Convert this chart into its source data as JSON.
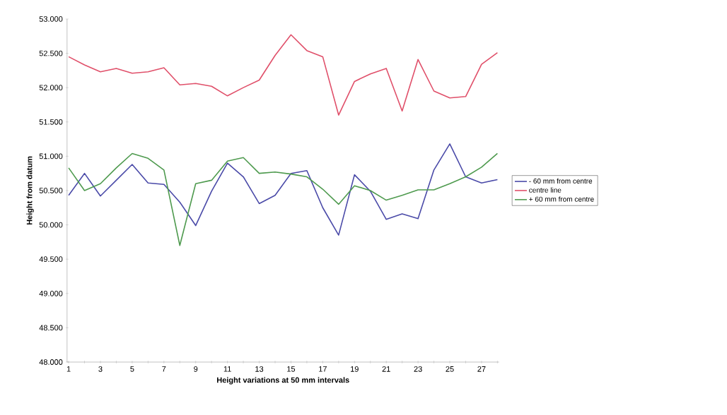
{
  "chart_data": {
    "type": "line",
    "xlabel": "Height variations at 50 mm intervals",
    "ylabel": "Height from datum",
    "categories": [
      "1",
      null,
      "3",
      null,
      "5",
      null,
      "7",
      null,
      "9",
      null,
      "11",
      null,
      "13",
      null,
      "15",
      null,
      "17",
      null,
      "19",
      null,
      "21",
      null,
      "23",
      null,
      "25",
      null,
      "27",
      null
    ],
    "series": [
      {
        "name": "- 60 mm from centre",
        "color": "#4a4aa8",
        "values": [
          50.43,
          50.75,
          50.42,
          50.65,
          50.88,
          50.61,
          50.59,
          50.33,
          49.99,
          50.49,
          50.9,
          50.7,
          50.31,
          50.43,
          50.75,
          50.79,
          50.25,
          49.85,
          50.73,
          50.49,
          50.08,
          50.16,
          50.09,
          50.8,
          51.18,
          50.7,
          50.61,
          50.66
        ]
      },
      {
        "name": "centre line",
        "color": "#e0506a",
        "values": [
          52.45,
          52.33,
          52.23,
          52.28,
          52.21,
          52.23,
          52.29,
          52.04,
          52.06,
          52.02,
          51.88,
          52.0,
          52.11,
          52.47,
          52.77,
          52.54,
          52.45,
          51.6,
          52.09,
          52.2,
          52.28,
          51.66,
          52.41,
          51.95,
          51.85,
          51.87,
          52.34,
          52.51
        ]
      },
      {
        "name": "+ 60 mm from centre",
        "color": "#4e9a4e",
        "values": [
          50.83,
          50.5,
          50.6,
          50.83,
          51.04,
          50.97,
          50.8,
          49.7,
          50.6,
          50.65,
          50.93,
          50.98,
          50.75,
          50.77,
          50.74,
          50.7,
          50.52,
          50.3,
          50.57,
          50.5,
          50.36,
          50.43,
          50.51,
          50.51,
          50.6,
          50.7,
          50.84,
          51.04
        ]
      }
    ],
    "ylim": [
      48,
      53
    ],
    "yticks": [
      {
        "value": 48,
        "label": "48.000"
      },
      {
        "value": 48.5,
        "label": "48.500"
      },
      {
        "value": 49,
        "label": "49.000"
      },
      {
        "value": 49.5,
        "label": "49.500"
      },
      {
        "value": 50,
        "label": "50.000"
      },
      {
        "value": 50.5,
        "label": "50.500"
      },
      {
        "value": 51,
        "label": "51.000"
      },
      {
        "value": 51.5,
        "label": "51.500"
      },
      {
        "value": 52,
        "label": "52.000"
      },
      {
        "value": 52.5,
        "label": "52.500"
      },
      {
        "value": 53,
        "label": "53.000"
      }
    ],
    "grid": false,
    "legend": "right",
    "marker": "none",
    "line_style": "solid"
  }
}
